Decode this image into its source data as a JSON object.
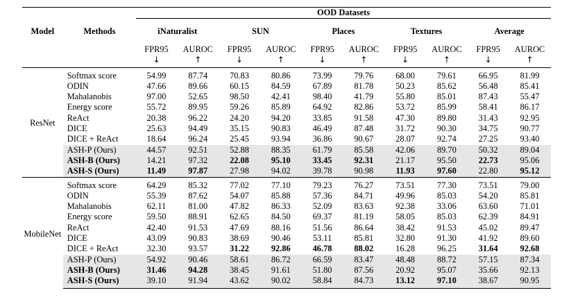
{
  "header": {
    "group_title": "OOD Datasets",
    "col_model": "Model",
    "col_methods": "Methods",
    "datasets": [
      "iNaturalist",
      "SUN",
      "Places",
      "Textures",
      "Average"
    ],
    "metrics": [
      "FPR95",
      "AUROC"
    ],
    "arrows": [
      "↓",
      "↑"
    ]
  },
  "groups": [
    {
      "model": "ResNet",
      "rows": [
        {
          "method": "Softmax score",
          "ours": false,
          "values": [
            "54.99",
            "87.74",
            "70.83",
            "80.86",
            "73.99",
            "79.76",
            "68.00",
            "79.61",
            "66.95",
            "81.99"
          ],
          "bold": []
        },
        {
          "method": "ODIN",
          "ours": false,
          "values": [
            "47.66",
            "89.66",
            "60.15",
            "84.59",
            "67.89",
            "81.78",
            "50.23",
            "85.62",
            "56.48",
            "85.41"
          ],
          "bold": []
        },
        {
          "method": "Mahalanobis",
          "ours": false,
          "values": [
            "97.00",
            "52.65",
            "98.50",
            "42.41",
            "98.40",
            "41.79",
            "55.80",
            "85.01",
            "87.43",
            "55.47"
          ],
          "bold": []
        },
        {
          "method": "Energy score",
          "ours": false,
          "values": [
            "55.72",
            "89.95",
            "59.26",
            "85.89",
            "64.92",
            "82.86",
            "53.72",
            "85.99",
            "58.41",
            "86.17"
          ],
          "bold": []
        },
        {
          "method": "ReAct",
          "ours": false,
          "values": [
            "20.38",
            "96.22",
            "24.20",
            "94.20",
            "33.85",
            "91.58",
            "47.30",
            "89.80",
            "31.43",
            "92.95"
          ],
          "bold": []
        },
        {
          "method": "DICE",
          "ours": false,
          "values": [
            "25.63",
            "94.49",
            "35.15",
            "90.83",
            "46.49",
            "87.48",
            "31.72",
            "90.30",
            "34.75",
            "90.77"
          ],
          "bold": []
        },
        {
          "method": "DICE + ReAct",
          "ours": false,
          "values": [
            "18.64",
            "96.24",
            "25.45",
            "93.94",
            "36.86",
            "90.67",
            "28.07",
            "92.74",
            "27.25",
            "93.40"
          ],
          "bold": []
        },
        {
          "method": "ASH-P (Ours)",
          "ours": true,
          "bold_method": false,
          "values": [
            "44.57",
            "92.51",
            "52.88",
            "88.35",
            "61.79",
            "85.58",
            "42.06",
            "89.70",
            "50.32",
            "89.04"
          ],
          "bold": []
        },
        {
          "method": "ASH-B (Ours)",
          "ours": true,
          "bold_method": true,
          "values": [
            "14.21",
            "97.32",
            "22.08",
            "95.10",
            "33.45",
            "92.31",
            "21.17",
            "95.50",
            "22.73",
            "95.06"
          ],
          "bold": [
            2,
            3,
            4,
            5,
            8
          ]
        },
        {
          "method": "ASH-S (Ours)",
          "ours": true,
          "bold_method": true,
          "values": [
            "11.49",
            "97.87",
            "27.98",
            "94.02",
            "39.78",
            "90.98",
            "11.93",
            "97.60",
            "22.80",
            "95.12"
          ],
          "bold": [
            0,
            1,
            6,
            7,
            9
          ]
        }
      ]
    },
    {
      "model": "MobileNet",
      "rows": [
        {
          "method": "Softmax score",
          "ours": false,
          "values": [
            "64.29",
            "85.32",
            "77.02",
            "77.10",
            "79.23",
            "76.27",
            "73.51",
            "77.30",
            "73.51",
            "79.00"
          ],
          "bold": []
        },
        {
          "method": "ODIN",
          "ours": false,
          "values": [
            "55.39",
            "87.62",
            "54.07",
            "85.88",
            "57.36",
            "84.71",
            "49.96",
            "85.03",
            "54.20",
            "85.81"
          ],
          "bold": []
        },
        {
          "method": "Mahalanobis",
          "ours": false,
          "values": [
            "62.11",
            "81.00",
            "47.82",
            "86.33",
            "52.09",
            "83.63",
            "92.38",
            "33.06",
            "63.60",
            "71.01"
          ],
          "bold": []
        },
        {
          "method": "Energy score",
          "ours": false,
          "values": [
            "59.50",
            "88.91",
            "62.65",
            "84.50",
            "69.37",
            "81.19",
            "58.05",
            "85.03",
            "62.39",
            "84.91"
          ],
          "bold": []
        },
        {
          "method": "ReAct",
          "ours": false,
          "values": [
            "42.40",
            "91.53",
            "47.69",
            "88.16",
            "51.56",
            "86.64",
            "38.42",
            "91.53",
            "45.02",
            "89.47"
          ],
          "bold": []
        },
        {
          "method": "DICE",
          "ours": false,
          "values": [
            "43.09",
            "90.83",
            "38.69",
            "90.46",
            "53.11",
            "85.81",
            "32.80",
            "91.30",
            "41.92",
            "89.60"
          ],
          "bold": []
        },
        {
          "method": "DICE + ReAct",
          "ours": false,
          "values": [
            "32.30",
            "93.57",
            "31.22",
            "92.86",
            "46.78",
            "88.02",
            "16.28",
            "96.25",
            "31.64",
            "92.68"
          ],
          "bold": [
            2,
            3,
            4,
            5,
            8,
            9
          ]
        },
        {
          "method": "ASH-P (Ours)",
          "ours": true,
          "bold_method": false,
          "values": [
            "54.92",
            "90.46",
            "58.61",
            "86.72",
            "66.59",
            "83.47",
            "48.48",
            "88.72",
            "57.15",
            "87.34"
          ],
          "bold": []
        },
        {
          "method": "ASH-B (Ours)",
          "ours": true,
          "bold_method": true,
          "values": [
            "31.46",
            "94.28",
            "38.45",
            "91.61",
            "51.80",
            "87.56",
            "20.92",
            "95.07",
            "35.66",
            "92.13"
          ],
          "bold": [
            0,
            1
          ]
        },
        {
          "method": "ASH-S (Ours)",
          "ours": true,
          "bold_method": true,
          "values": [
            "39.10",
            "91.94",
            "43.62",
            "90.02",
            "58.84",
            "84.73",
            "13.12",
            "97.10",
            "38.67",
            "90.95"
          ],
          "bold": [
            6,
            7
          ]
        }
      ]
    }
  ]
}
